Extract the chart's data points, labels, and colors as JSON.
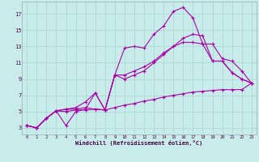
{
  "background_color": "#c8ecea",
  "grid_color": "#a8d4d2",
  "line_color": "#aa00aa",
  "xlabel": "Windchill (Refroidissement éolien,°C)",
  "x_ticks": [
    0,
    1,
    2,
    3,
    4,
    5,
    6,
    7,
    8,
    9,
    10,
    11,
    12,
    13,
    14,
    15,
    16,
    17,
    18,
    19,
    20,
    21,
    22,
    23
  ],
  "y_ticks": [
    3,
    5,
    7,
    9,
    11,
    13,
    15,
    17
  ],
  "ylim": [
    2.2,
    18.5
  ],
  "xlim": [
    -0.5,
    23.5
  ],
  "lines": [
    [
      3.3,
      3.0,
      4.2,
      5.1,
      5.3,
      5.3,
      5.5,
      5.3,
      5.2,
      9.5,
      12.8,
      13.0,
      12.8,
      14.5,
      15.5,
      17.3,
      17.8,
      16.5,
      13.3,
      13.3,
      11.5,
      11.2,
      10.0,
      8.5
    ],
    [
      3.3,
      3.0,
      4.2,
      5.1,
      5.3,
      5.5,
      6.2,
      7.3,
      5.2,
      9.5,
      9.5,
      10.0,
      10.5,
      11.2,
      12.2,
      13.0,
      13.5,
      13.5,
      13.3,
      11.2,
      11.2,
      9.8,
      9.0,
      8.5
    ],
    [
      3.3,
      3.0,
      4.2,
      5.1,
      3.3,
      5.0,
      5.3,
      7.3,
      5.2,
      9.5,
      9.0,
      9.5,
      10.0,
      11.0,
      12.0,
      13.0,
      14.0,
      14.5,
      14.3,
      11.2,
      11.2,
      9.8,
      9.0,
      8.5
    ],
    [
      3.3,
      3.0,
      4.2,
      5.1,
      5.0,
      5.2,
      5.2,
      5.3,
      5.2,
      5.5,
      5.8,
      6.0,
      6.3,
      6.5,
      6.8,
      7.0,
      7.2,
      7.4,
      7.5,
      7.6,
      7.7,
      7.7,
      7.7,
      8.5
    ]
  ]
}
